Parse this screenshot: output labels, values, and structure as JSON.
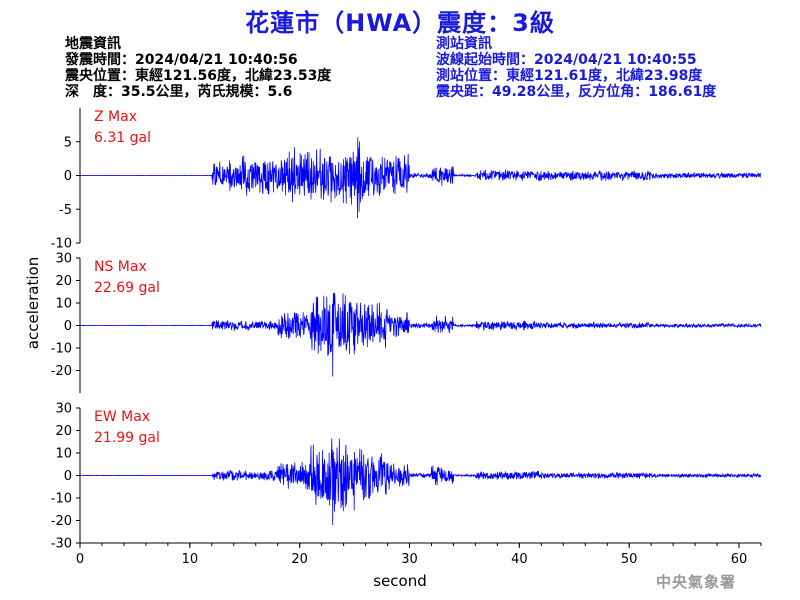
{
  "title": "花蓮市（HWA）震度：3級",
  "quake_info": {
    "heading": "地震資訊",
    "time": "發震時間：2024/04/21 10:40:56",
    "epicenter": "震央位置：東經121.56度，北緯23.53度",
    "depth_magnitude": "深　度：35.5公里，芮氏規模：5.6"
  },
  "station_info": {
    "heading": "測站資訊",
    "wave_start": "波線起始時間：2024/04/21 10:40:55",
    "location": "測站位置：東經121.61度，北緯23.98度",
    "distance": "震央距：49.28公里，反方位角：186.61度"
  },
  "agency": "中央氣象署",
  "colors": {
    "title": "#1a1adc",
    "trace": "#0000ff",
    "max_label": "#ee1111",
    "axis": "#000000"
  },
  "chart_data": [
    {
      "type": "line",
      "component": "Z",
      "max_label": "Z Max",
      "max_value": "6.31 gal",
      "ylim": [
        -10,
        10
      ],
      "yticks": [
        -10,
        -5,
        0,
        5
      ],
      "xlim": [
        0,
        62
      ],
      "peak": 6.31,
      "segments": [
        {
          "t": [
            0,
            12
          ],
          "amp": 0.05
        },
        {
          "t": [
            12,
            14.5
          ],
          "amp": 2.6
        },
        {
          "t": [
            14.5,
            19
          ],
          "amp": 3.2
        },
        {
          "t": [
            19,
            24
          ],
          "amp": 4.5
        },
        {
          "t": [
            24,
            26.5
          ],
          "amp": 5.8
        },
        {
          "t": [
            26.5,
            30
          ],
          "amp": 3.5
        },
        {
          "t": [
            30,
            32
          ],
          "amp": 0.4
        },
        {
          "t": [
            32,
            34
          ],
          "amp": 1.6
        },
        {
          "t": [
            34,
            36
          ],
          "amp": 0.2
        },
        {
          "t": [
            36,
            42
          ],
          "amp": 0.9
        },
        {
          "t": [
            42,
            52
          ],
          "amp": 0.8
        },
        {
          "t": [
            52,
            62
          ],
          "amp": 0.45
        }
      ]
    },
    {
      "type": "line",
      "component": "NS",
      "max_label": "NS Max",
      "max_value": "22.69 gal",
      "ylim": [
        -30,
        30
      ],
      "yticks": [
        -20,
        -10,
        0,
        10,
        20,
        30
      ],
      "xlim": [
        0,
        62
      ],
      "peak": 22.69,
      "segments": [
        {
          "t": [
            0,
            12
          ],
          "amp": 0.15
        },
        {
          "t": [
            12,
            18
          ],
          "amp": 2.5
        },
        {
          "t": [
            18,
            21
          ],
          "amp": 6.5
        },
        {
          "t": [
            21,
            25
          ],
          "amp": 16
        },
        {
          "t": [
            25,
            28
          ],
          "amp": 12
        },
        {
          "t": [
            28,
            30
          ],
          "amp": 6
        },
        {
          "t": [
            30,
            32
          ],
          "amp": 1.2
        },
        {
          "t": [
            32,
            34
          ],
          "amp": 4.5
        },
        {
          "t": [
            34,
            36
          ],
          "amp": 0.5
        },
        {
          "t": [
            36,
            42
          ],
          "amp": 2.2
        },
        {
          "t": [
            42,
            52
          ],
          "amp": 1.5
        },
        {
          "t": [
            52,
            62
          ],
          "amp": 0.9
        }
      ]
    },
    {
      "type": "line",
      "component": "EW",
      "max_label": "EW Max",
      "max_value": "21.99 gal",
      "ylim": [
        -30,
        30
      ],
      "yticks": [
        -30,
        -20,
        -10,
        0,
        10,
        20,
        30
      ],
      "xlim": [
        0,
        62
      ],
      "peak": 21.99,
      "segments": [
        {
          "t": [
            0,
            12
          ],
          "amp": 0.15
        },
        {
          "t": [
            12,
            18
          ],
          "amp": 2.5
        },
        {
          "t": [
            18,
            21
          ],
          "amp": 7
        },
        {
          "t": [
            21,
            25
          ],
          "amp": 17
        },
        {
          "t": [
            25,
            28
          ],
          "amp": 12
        },
        {
          "t": [
            28,
            30
          ],
          "amp": 6.5
        },
        {
          "t": [
            30,
            32
          ],
          "amp": 1.2
        },
        {
          "t": [
            32,
            34
          ],
          "amp": 4.5
        },
        {
          "t": [
            34,
            36
          ],
          "amp": 0.5
        },
        {
          "t": [
            36,
            42
          ],
          "amp": 2.2
        },
        {
          "t": [
            42,
            52
          ],
          "amp": 1.5
        },
        {
          "t": [
            52,
            62
          ],
          "amp": 0.9
        }
      ]
    }
  ],
  "x_axis": {
    "label": "second",
    "ticks": [
      0,
      10,
      20,
      30,
      40,
      50,
      60
    ]
  },
  "y_axis": {
    "label": "acceleration"
  }
}
